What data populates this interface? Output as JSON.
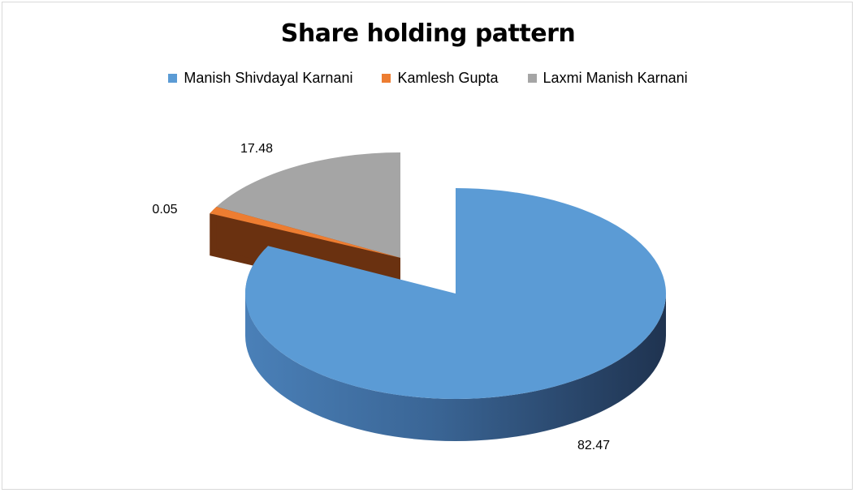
{
  "chart_data": {
    "type": "pie",
    "title": "Share holding pattern",
    "style": "3d-exploded",
    "legend_position": "top",
    "series": [
      {
        "name": "Manish Shivdayal Karnani",
        "value": 82.47,
        "label": "82.47",
        "color": "#5b9bd5",
        "dark": "#23364f"
      },
      {
        "name": "Kamlesh Gupta",
        "value": 0.05,
        "label": "0.05",
        "color": "#ed7d31",
        "dark": "#6a3110"
      },
      {
        "name": "Laxmi Manish Karnani",
        "value": 17.48,
        "label": "17.48",
        "color": "#a5a5a5",
        "dark": "#404040"
      }
    ]
  }
}
